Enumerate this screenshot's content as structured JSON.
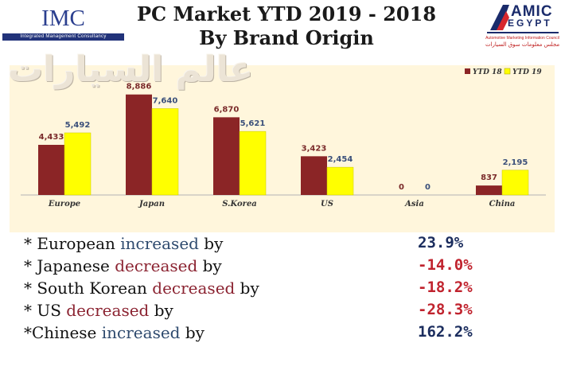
{
  "header": {
    "title_line1": "PC Market YTD 2019 - 2018",
    "title_line2": "By Brand Origin",
    "left_logo": {
      "name": "IMC",
      "subtitle": "Integrated Management Consultancy"
    },
    "right_logo": {
      "name_top": "AMIC",
      "name_bottom": "EGYPT",
      "subtitle": "Automotive Marketing Information Council",
      "subtitle_ar": "مجلس معلومات سوق السيارات"
    },
    "watermark": "عالم السيارات"
  },
  "colors": {
    "series_ytd18": "#8b2526",
    "series_ytd19": "#ffff00",
    "panel_bg": "#fff6dc",
    "positive": "#1b2d5e",
    "negative": "#c0232e"
  },
  "chart_data": {
    "type": "bar",
    "categories": [
      "Europe",
      "Japan",
      "S.Korea",
      "US",
      "Asia",
      "China"
    ],
    "series": [
      {
        "name": "YTD 18",
        "values": [
          4433,
          8886,
          6870,
          3423,
          0,
          837
        ],
        "labels": [
          "4,433",
          "8,886",
          "6,870",
          "3,423",
          "0",
          "837"
        ]
      },
      {
        "name": "YTD 19",
        "values": [
          5492,
          7640,
          5621,
          2454,
          0,
          2195
        ],
        "labels": [
          "5,492",
          "7,640",
          "5,621",
          "2,454",
          "0",
          "2,195"
        ]
      }
    ],
    "ylim": [
      0,
      9500
    ],
    "legend": "top-right",
    "grid": false
  },
  "stats": [
    {
      "prefix": "* European ",
      "verb": "increased",
      "suffix": " by",
      "value": "23.9%",
      "direction": "inc"
    },
    {
      "prefix": "* Japanese ",
      "verb": "decreased",
      "suffix": " by",
      "value": "-14.0%",
      "direction": "dec"
    },
    {
      "prefix": "* South Korean ",
      "verb": "decreased",
      "suffix": " by",
      "value": "-18.2%",
      "direction": "dec"
    },
    {
      "prefix": "* US ",
      "verb": "decreased",
      "suffix": " by",
      "value": "-28.3%",
      "direction": "dec"
    },
    {
      "prefix": "*Chinese ",
      "verb": "increased",
      "suffix": " by",
      "value": "162.2%",
      "direction": "inc"
    }
  ]
}
